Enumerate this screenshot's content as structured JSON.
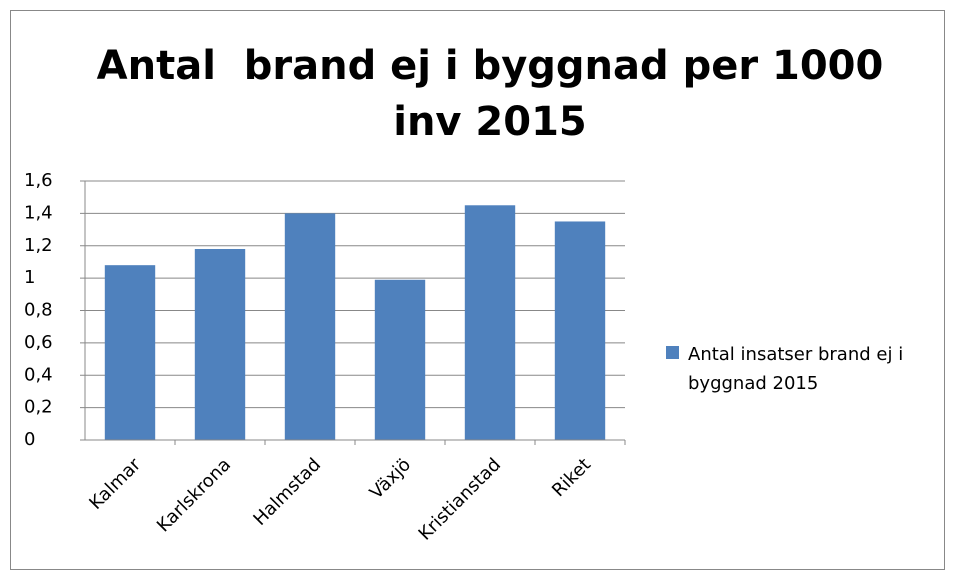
{
  "chart_data": {
    "type": "bar",
    "title": "Antal  brand ej i byggnad per 1000 inv 2015",
    "categories": [
      "Kalmar",
      "Karlskrona",
      "Halmstad",
      "Växjö",
      "Kristianstad",
      "Riket"
    ],
    "series": [
      {
        "name": "Antal insatser brand ej i byggnad 2015",
        "color": "#4f81bd",
        "values": [
          1.08,
          1.18,
          1.4,
          0.99,
          1.45,
          1.35
        ]
      }
    ],
    "ylim": [
      0,
      1.6
    ],
    "yticks": [
      0,
      {
        "value": 0.2,
        "label": "0,2"
      },
      {
        "value": 0.4,
        "label": "0,4"
      },
      {
        "value": 0.6,
        "label": "0,6"
      },
      {
        "value": 0.8,
        "label": "0,8"
      },
      1,
      {
        "value": 1.2,
        "label": "1,2"
      },
      {
        "value": 1.4,
        "label": "1,4"
      },
      {
        "value": 1.6,
        "label": "1,6"
      }
    ],
    "grid": true,
    "legend": "right"
  }
}
